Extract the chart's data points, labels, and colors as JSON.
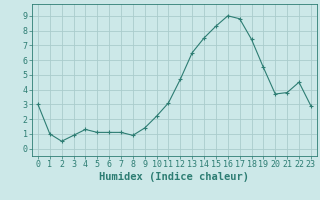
{
  "x": [
    0,
    1,
    2,
    3,
    4,
    5,
    6,
    7,
    8,
    9,
    10,
    11,
    12,
    13,
    14,
    15,
    16,
    17,
    18,
    19,
    20,
    21,
    22,
    23
  ],
  "y": [
    3.0,
    1.0,
    0.5,
    0.9,
    1.3,
    1.1,
    1.1,
    1.1,
    0.9,
    1.4,
    2.2,
    3.1,
    4.7,
    6.5,
    7.5,
    8.3,
    9.0,
    8.8,
    7.4,
    5.5,
    3.7,
    3.8,
    4.5,
    2.9
  ],
  "line_color": "#2d7d73",
  "marker": "+",
  "marker_size": 3,
  "bg_color": "#cce8e8",
  "grid_color": "#aacccc",
  "xlabel": "Humidex (Indice chaleur)",
  "xlim": [
    -0.5,
    23.5
  ],
  "ylim": [
    -0.5,
    9.8
  ],
  "yticks": [
    0,
    1,
    2,
    3,
    4,
    5,
    6,
    7,
    8,
    9
  ],
  "xticks": [
    0,
    1,
    2,
    3,
    4,
    5,
    6,
    7,
    8,
    9,
    10,
    11,
    12,
    13,
    14,
    15,
    16,
    17,
    18,
    19,
    20,
    21,
    22,
    23
  ],
  "tick_label_fontsize": 6,
  "xlabel_fontsize": 7.5
}
